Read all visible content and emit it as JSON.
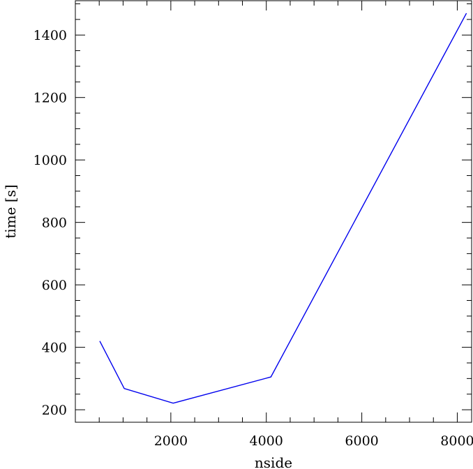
{
  "chart_data": {
    "type": "line",
    "title": "",
    "xlabel": "nside",
    "ylabel": "time [s]",
    "xlim": [
      0,
      8300
    ],
    "ylim": [
      160,
      1510
    ],
    "x_ticks": [
      2000,
      4000,
      6000,
      8000
    ],
    "x_tick_labels": [
      "2000",
      "4000",
      "6000",
      "8000"
    ],
    "y_ticks": [
      200,
      400,
      600,
      800,
      1000,
      1200,
      1400
    ],
    "y_tick_labels": [
      "200",
      "400",
      "600",
      "800",
      "1000",
      "1200",
      "1400"
    ],
    "x_minor_step": 500,
    "y_minor_step": 50,
    "grid": false,
    "series": [
      {
        "color": "#0000ee",
        "x": [
          512,
          1024,
          2048,
          4096,
          8192
        ],
        "y": [
          420,
          268,
          221,
          305,
          1470
        ]
      }
    ]
  }
}
